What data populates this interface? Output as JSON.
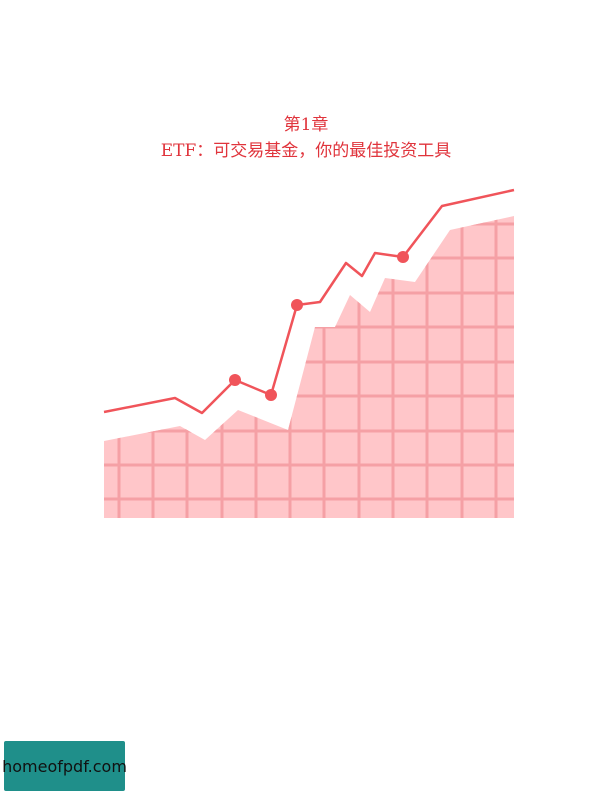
{
  "chapter": {
    "number_label": "第1章",
    "title": "ETF：可交易基金，你的最佳投资工具"
  },
  "illustration": {
    "line_color": "#f0545a",
    "fill_color": "#ffc6c9",
    "grid_color": "#f5a0a5"
  },
  "watermark": {
    "text": "homeofpdf.com",
    "background": "#1f8f8a"
  }
}
